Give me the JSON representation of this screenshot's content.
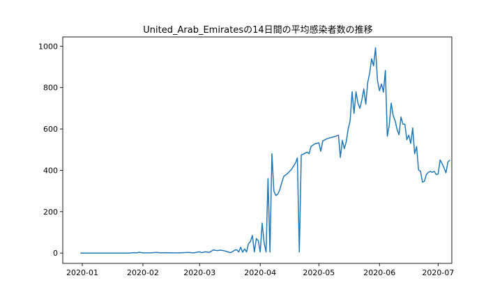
{
  "chart_data": {
    "type": "line",
    "title": "United_Arab_Emiratesの14日間の平均感染者数の推移",
    "xlabel": "",
    "ylabel": "",
    "xlim": [
      "2019-12-22",
      "2020-07-08"
    ],
    "ylim": [
      -50,
      1045
    ],
    "grid": false,
    "x_ticks": [
      "2020-01",
      "2020-02",
      "2020-03",
      "2020-04",
      "2020-05",
      "2020-06",
      "2020-07"
    ],
    "y_ticks": [
      0,
      200,
      400,
      600,
      800,
      1000
    ],
    "series": [
      {
        "color": "#1f77b4",
        "points": [
          [
            "2019-12-31",
            0
          ],
          [
            "2020-01-05",
            0
          ],
          [
            "2020-01-10",
            0
          ],
          [
            "2020-01-15",
            0
          ],
          [
            "2020-01-20",
            0
          ],
          [
            "2020-01-25",
            0
          ],
          [
            "2020-01-27",
            2
          ],
          [
            "2020-01-29",
            1
          ],
          [
            "2020-01-30",
            4
          ],
          [
            "2020-02-01",
            1
          ],
          [
            "2020-02-05",
            1
          ],
          [
            "2020-02-08",
            3
          ],
          [
            "2020-02-10",
            1
          ],
          [
            "2020-02-13",
            2
          ],
          [
            "2020-02-16",
            1
          ],
          [
            "2020-02-20",
            1
          ],
          [
            "2020-02-24",
            3
          ],
          [
            "2020-02-27",
            1
          ],
          [
            "2020-03-01",
            6
          ],
          [
            "2020-03-02",
            2
          ],
          [
            "2020-03-04",
            6
          ],
          [
            "2020-03-06",
            3
          ],
          [
            "2020-03-08",
            15
          ],
          [
            "2020-03-10",
            12
          ],
          [
            "2020-03-12",
            14
          ],
          [
            "2020-03-14",
            10
          ],
          [
            "2020-03-16",
            4
          ],
          [
            "2020-03-17",
            2
          ],
          [
            "2020-03-19",
            14
          ],
          [
            "2020-03-20",
            16
          ],
          [
            "2020-03-21",
            5
          ],
          [
            "2020-03-22",
            28
          ],
          [
            "2020-03-23",
            4
          ],
          [
            "2020-03-24",
            20
          ],
          [
            "2020-03-25",
            5
          ],
          [
            "2020-03-26",
            45
          ],
          [
            "2020-03-27",
            55
          ],
          [
            "2020-03-28",
            85
          ],
          [
            "2020-03-29",
            5
          ],
          [
            "2020-03-30",
            70
          ],
          [
            "2020-03-31",
            60
          ],
          [
            "2020-04-01",
            5
          ],
          [
            "2020-04-02",
            145
          ],
          [
            "2020-04-03",
            50
          ],
          [
            "2020-04-04",
            5
          ],
          [
            "2020-04-05",
            360
          ],
          [
            "2020-04-06",
            5
          ],
          [
            "2020-04-07",
            480
          ],
          [
            "2020-04-08",
            300
          ],
          [
            "2020-04-09",
            278
          ],
          [
            "2020-04-10",
            285
          ],
          [
            "2020-04-11",
            305
          ],
          [
            "2020-04-12",
            340
          ],
          [
            "2020-04-13",
            370
          ],
          [
            "2020-04-15",
            385
          ],
          [
            "2020-04-17",
            405
          ],
          [
            "2020-04-19",
            435
          ],
          [
            "2020-04-20",
            460
          ],
          [
            "2020-04-21",
            5
          ],
          [
            "2020-04-22",
            475
          ],
          [
            "2020-04-23",
            478
          ],
          [
            "2020-04-25",
            488
          ],
          [
            "2020-04-26",
            480
          ],
          [
            "2020-04-27",
            515
          ],
          [
            "2020-04-29",
            528
          ],
          [
            "2020-05-01",
            533
          ],
          [
            "2020-05-02",
            492
          ],
          [
            "2020-05-03",
            542
          ],
          [
            "2020-05-05",
            552
          ],
          [
            "2020-05-07",
            558
          ],
          [
            "2020-05-09",
            563
          ],
          [
            "2020-05-11",
            570
          ],
          [
            "2020-05-12",
            462
          ],
          [
            "2020-05-13",
            545
          ],
          [
            "2020-05-14",
            505
          ],
          [
            "2020-05-15",
            538
          ],
          [
            "2020-05-16",
            600
          ],
          [
            "2020-05-17",
            640
          ],
          [
            "2020-05-18",
            780
          ],
          [
            "2020-05-19",
            675
          ],
          [
            "2020-05-20",
            780
          ],
          [
            "2020-05-21",
            725
          ],
          [
            "2020-05-22",
            700
          ],
          [
            "2020-05-23",
            740
          ],
          [
            "2020-05-24",
            793
          ],
          [
            "2020-05-25",
            720
          ],
          [
            "2020-05-26",
            825
          ],
          [
            "2020-05-27",
            870
          ],
          [
            "2020-05-28",
            940
          ],
          [
            "2020-05-29",
            905
          ],
          [
            "2020-05-30",
            993
          ],
          [
            "2020-05-31",
            835
          ],
          [
            "2020-06-01",
            785
          ],
          [
            "2020-06-02",
            818
          ],
          [
            "2020-06-03",
            778
          ],
          [
            "2020-06-04",
            883
          ],
          [
            "2020-06-05",
            565
          ],
          [
            "2020-06-06",
            618
          ],
          [
            "2020-06-07",
            725
          ],
          [
            "2020-06-08",
            665
          ],
          [
            "2020-06-09",
            640
          ],
          [
            "2020-06-10",
            598
          ],
          [
            "2020-06-11",
            572
          ],
          [
            "2020-06-12",
            658
          ],
          [
            "2020-06-13",
            623
          ],
          [
            "2020-06-14",
            623
          ],
          [
            "2020-06-15",
            548
          ],
          [
            "2020-06-16",
            570
          ],
          [
            "2020-06-17",
            530
          ],
          [
            "2020-06-18",
            605
          ],
          [
            "2020-06-19",
            480
          ],
          [
            "2020-06-20",
            515
          ],
          [
            "2020-06-21",
            402
          ],
          [
            "2020-06-22",
            395
          ],
          [
            "2020-06-23",
            343
          ],
          [
            "2020-06-24",
            347
          ],
          [
            "2020-06-25",
            380
          ],
          [
            "2020-06-26",
            390
          ],
          [
            "2020-06-27",
            395
          ],
          [
            "2020-06-28",
            390
          ],
          [
            "2020-06-29",
            395
          ],
          [
            "2020-06-30",
            380
          ],
          [
            "2020-07-01",
            382
          ],
          [
            "2020-07-02",
            450
          ],
          [
            "2020-07-03",
            433
          ],
          [
            "2020-07-04",
            412
          ],
          [
            "2020-07-05",
            388
          ],
          [
            "2020-07-06",
            440
          ],
          [
            "2020-07-07",
            450
          ]
        ]
      }
    ]
  }
}
